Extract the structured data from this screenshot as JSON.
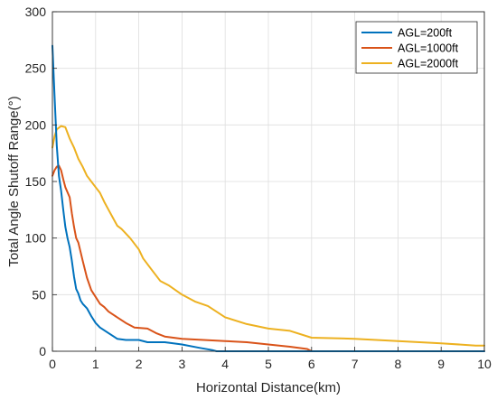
{
  "chart_data": {
    "type": "line",
    "title": "",
    "xlabel": "Horizontal Distance(km)",
    "ylabel": "Total  Angle Shutoff Range(°)",
    "xlim": [
      0,
      10
    ],
    "ylim": [
      0,
      300
    ],
    "xticks": [
      "0",
      "1",
      "2",
      "3",
      "4",
      "5",
      "6",
      "7",
      "8",
      "9",
      "10"
    ],
    "yticks": [
      "0",
      "50",
      "100",
      "150",
      "200",
      "250",
      "300"
    ],
    "grid": true,
    "legend_position": "top-right",
    "series": [
      {
        "name": "AGL=200ft",
        "color": "#0072BD",
        "x": [
          0,
          0.05,
          0.1,
          0.15,
          0.2,
          0.25,
          0.3,
          0.35,
          0.4,
          0.45,
          0.5,
          0.55,
          0.6,
          0.65,
          0.7,
          0.8,
          0.9,
          1.0,
          1.1,
          1.3,
          1.5,
          1.7,
          2.0,
          2.2,
          2.6,
          3.0,
          3.4,
          3.7,
          3.8,
          10
        ],
        "y": [
          270,
          225,
          182,
          155,
          142,
          125,
          110,
          100,
          92,
          80,
          66,
          55,
          51,
          45,
          42,
          38,
          31,
          25,
          21,
          16,
          11,
          10,
          10,
          8,
          8,
          6,
          3,
          1,
          0,
          0
        ]
      },
      {
        "name": "AGL=1000ft",
        "color": "#D95319",
        "x": [
          0,
          0.05,
          0.1,
          0.15,
          0.2,
          0.25,
          0.3,
          0.4,
          0.45,
          0.5,
          0.55,
          0.6,
          0.7,
          0.8,
          0.9,
          1.0,
          1.1,
          1.2,
          1.3,
          1.5,
          1.7,
          1.9,
          2.2,
          2.4,
          2.6,
          3.0,
          3.5,
          4.0,
          4.5,
          5.0,
          5.5,
          5.9,
          6.0,
          10
        ],
        "y": [
          155,
          160,
          163,
          164,
          160,
          152,
          145,
          136,
          122,
          110,
          100,
          96,
          80,
          65,
          54,
          48,
          42,
          39,
          35,
          30,
          25,
          21,
          20,
          16,
          13,
          11,
          10,
          9,
          8,
          6,
          4,
          2,
          0,
          0
        ]
      },
      {
        "name": "AGL=2000ft",
        "color": "#EDB120",
        "x": [
          0,
          0.05,
          0.1,
          0.2,
          0.3,
          0.35,
          0.4,
          0.5,
          0.6,
          0.7,
          0.8,
          0.9,
          1.0,
          1.1,
          1.2,
          1.3,
          1.4,
          1.5,
          1.6,
          1.8,
          2.0,
          2.1,
          2.3,
          2.5,
          2.7,
          3.0,
          3.3,
          3.6,
          4.0,
          4.5,
          5.0,
          5.5,
          6.0,
          7.0,
          8.0,
          9.0,
          9.8,
          10
        ],
        "y": [
          180,
          190,
          196,
          199,
          198,
          193,
          188,
          180,
          170,
          163,
          155,
          150,
          145,
          140,
          132,
          125,
          118,
          111,
          108,
          100,
          90,
          82,
          72,
          62,
          58,
          50,
          44,
          40,
          30,
          24,
          20,
          18,
          12,
          11,
          9,
          7,
          5,
          5
        ]
      }
    ]
  }
}
